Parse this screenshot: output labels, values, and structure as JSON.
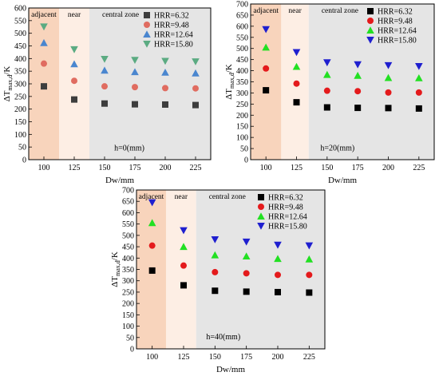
{
  "chart_data": [
    {
      "type": "scatter",
      "x": [
        100,
        125,
        150,
        175,
        200,
        225
      ],
      "xlim": [
        87.5,
        237.5
      ],
      "ylim": [
        0,
        600
      ],
      "yticks": [
        0,
        50,
        100,
        150,
        200,
        250,
        300,
        350,
        400,
        450,
        500,
        550,
        600
      ],
      "xlabel": "Dw/mm",
      "ylabel_main": "ΔT",
      "ylabel_sub": "max,d",
      "ylabel_unit": "/K",
      "annotation": "h=0(mm)",
      "zones": [
        {
          "label": "adjacent",
          "from": 87.5,
          "to": 112.5,
          "color": "#f8d4bc"
        },
        {
          "label": "near",
          "from": 112.5,
          "to": 137.5,
          "color": "#fdeee4"
        },
        {
          "label": "central zone",
          "from": 137.5,
          "to": 237.5,
          "color": "#e5e5e5"
        }
      ],
      "series": [
        {
          "name": "HRR=6.32",
          "marker": "square",
          "color": "#3d3d3d",
          "values": [
            290,
            238,
            222,
            219,
            218,
            216
          ]
        },
        {
          "name": "HRR=9.48",
          "marker": "circle",
          "color": "#e06c60",
          "values": [
            380,
            312,
            290,
            287,
            283,
            282
          ]
        },
        {
          "name": "HRR=12.64",
          "marker": "triangle-up",
          "color": "#4a86cf",
          "values": [
            462,
            378,
            353,
            347,
            345,
            342
          ]
        },
        {
          "name": "HRR=15.80",
          "marker": "triangle-down",
          "color": "#5bab82",
          "values": [
            526,
            436,
            398,
            394,
            390,
            388
          ]
        }
      ]
    },
    {
      "type": "scatter",
      "x": [
        100,
        125,
        150,
        175,
        200,
        225
      ],
      "xlim": [
        87.5,
        237.5
      ],
      "ylim": [
        0,
        700
      ],
      "yticks": [
        0,
        50,
        100,
        150,
        200,
        250,
        300,
        350,
        400,
        450,
        500,
        550,
        600,
        650,
        700
      ],
      "xlabel": "Dw/mm",
      "ylabel_main": "ΔT",
      "ylabel_sub": "max,d",
      "ylabel_unit": "/K",
      "annotation": "h=20(mm)",
      "zones": [
        {
          "label": "adjacent",
          "from": 87.5,
          "to": 112.5,
          "color": "#f8d4bc"
        },
        {
          "label": "near",
          "from": 112.5,
          "to": 135,
          "color": "#fdeee4"
        },
        {
          "label": "central zone",
          "from": 135,
          "to": 237.5,
          "color": "#e5e5e5"
        }
      ],
      "series": [
        {
          "name": "HRR=6.32",
          "marker": "square",
          "color": "#000000",
          "values": [
            312,
            258,
            235,
            233,
            232,
            230
          ]
        },
        {
          "name": "HRR=9.48",
          "marker": "circle",
          "color": "#e41a1c",
          "values": [
            410,
            342,
            310,
            308,
            302,
            302
          ]
        },
        {
          "name": "HRR=12.64",
          "marker": "triangle-up",
          "color": "#22e022",
          "values": [
            505,
            418,
            382,
            378,
            368,
            367
          ]
        },
        {
          "name": "HRR=15.80",
          "marker": "triangle-down",
          "color": "#1f1fcf",
          "values": [
            586,
            483,
            437,
            428,
            424,
            420
          ]
        }
      ]
    },
    {
      "type": "scatter",
      "x": [
        100,
        125,
        150,
        175,
        200,
        225
      ],
      "xlim": [
        87.5,
        237.5
      ],
      "ylim": [
        0,
        700
      ],
      "yticks": [
        0,
        50,
        100,
        150,
        200,
        250,
        300,
        350,
        400,
        450,
        500,
        550,
        600,
        650,
        700
      ],
      "xlabel": "Dw/mm",
      "ylabel_main": "ΔT",
      "ylabel_sub": "max,d",
      "ylabel_unit": "/K",
      "annotation": "h=40(mm)",
      "zones": [
        {
          "label": "adjacent",
          "from": 87.5,
          "to": 111,
          "color": "#f8d4bc"
        },
        {
          "label": "near",
          "from": 111,
          "to": 135,
          "color": "#fdeee4"
        },
        {
          "label": "central zone",
          "from": 135,
          "to": 237.5,
          "color": "#e5e5e5"
        }
      ],
      "series": [
        {
          "name": "HRR=6.32",
          "marker": "square",
          "color": "#000000",
          "values": [
            345,
            280,
            256,
            252,
            250,
            248
          ]
        },
        {
          "name": "HRR=9.48",
          "marker": "circle",
          "color": "#e41a1c",
          "values": [
            455,
            367,
            338,
            333,
            326,
            326
          ]
        },
        {
          "name": "HRR=12.64",
          "marker": "triangle-up",
          "color": "#22e022",
          "values": [
            555,
            450,
            413,
            408,
            397,
            395
          ]
        },
        {
          "name": "HRR=15.80",
          "marker": "triangle-down",
          "color": "#1f1fcf",
          "values": [
            645,
            522,
            482,
            472,
            458,
            455
          ]
        }
      ]
    }
  ]
}
